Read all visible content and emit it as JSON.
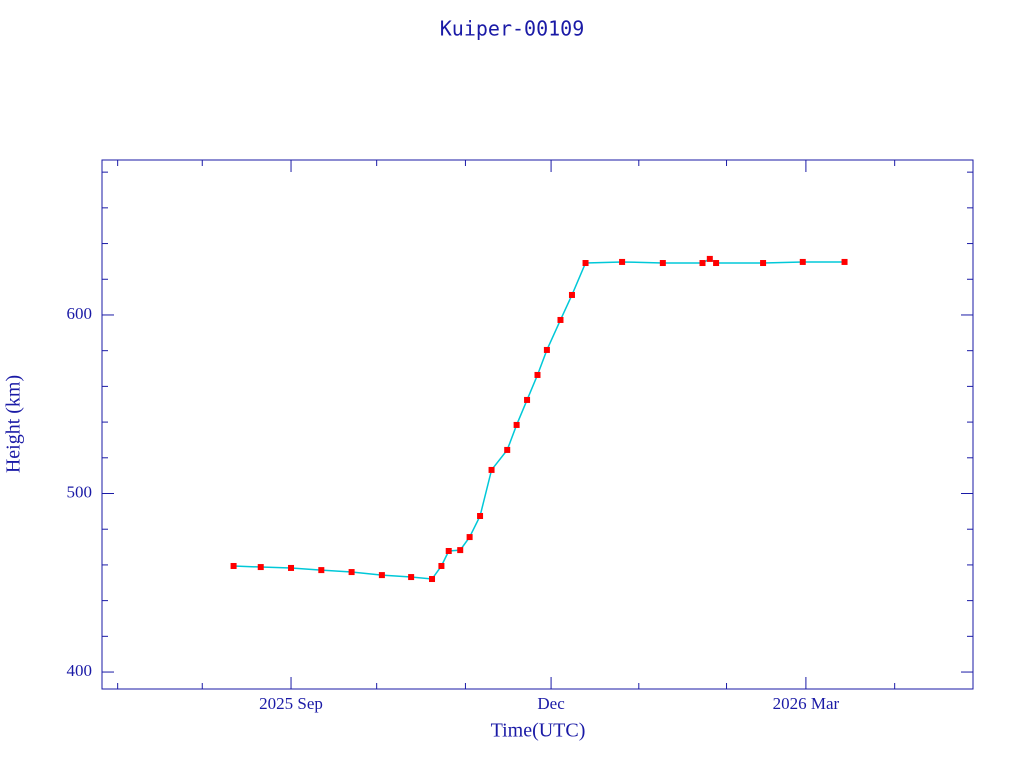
{
  "chart_data": {
    "type": "line",
    "title": "Kuiper-00109",
    "x_label": "Time(UTC)",
    "y_label": "Height (km)",
    "xlim": [
      2025.485,
      2026.319
    ],
    "ylim": [
      390.5,
      686.8
    ],
    "xticks": [
      {
        "value": 2025.666,
        "label": "2025 Sep"
      },
      {
        "value": 2025.915,
        "label": "Dec"
      },
      {
        "value": 2026.159,
        "label": "2026 Mar"
      }
    ],
    "xminorticks": [
      2025.5,
      2025.581,
      2025.748,
      2025.833,
      2025.999,
      2026.083,
      2026.244
    ],
    "yticks": [
      400,
      500,
      600
    ],
    "yminorticks": [
      420,
      440,
      460,
      480,
      520,
      540,
      560,
      580,
      620,
      640,
      660,
      680
    ],
    "series": [
      {
        "name": "Height",
        "color": "#ff0000",
        "line_color": "#00c8d8",
        "x": [
          2025.611,
          2025.637,
          2025.666,
          2025.695,
          2025.724,
          2025.753,
          2025.781,
          2025.801,
          2025.81,
          2025.817,
          2025.828,
          2025.837,
          2025.847,
          2025.858,
          2025.873,
          2025.882,
          2025.892,
          2025.902,
          2025.911,
          2025.924,
          2025.935,
          2025.948,
          2025.983,
          2026.022,
          2026.06,
          2026.067,
          2026.073,
          2026.118,
          2026.156,
          2026.196
        ],
        "values": [
          459.4,
          458.8,
          458.3,
          457.1,
          456.0,
          454.3,
          453.2,
          452.1,
          459.4,
          467.8,
          468.3,
          475.6,
          487.4,
          513.2,
          524.4,
          538.4,
          552.4,
          566.4,
          580.4,
          597.2,
          611.2,
          629.1,
          629.7,
          629.1,
          629.1,
          631.4,
          629.1,
          629.1,
          629.7,
          629.7
        ]
      }
    ]
  }
}
